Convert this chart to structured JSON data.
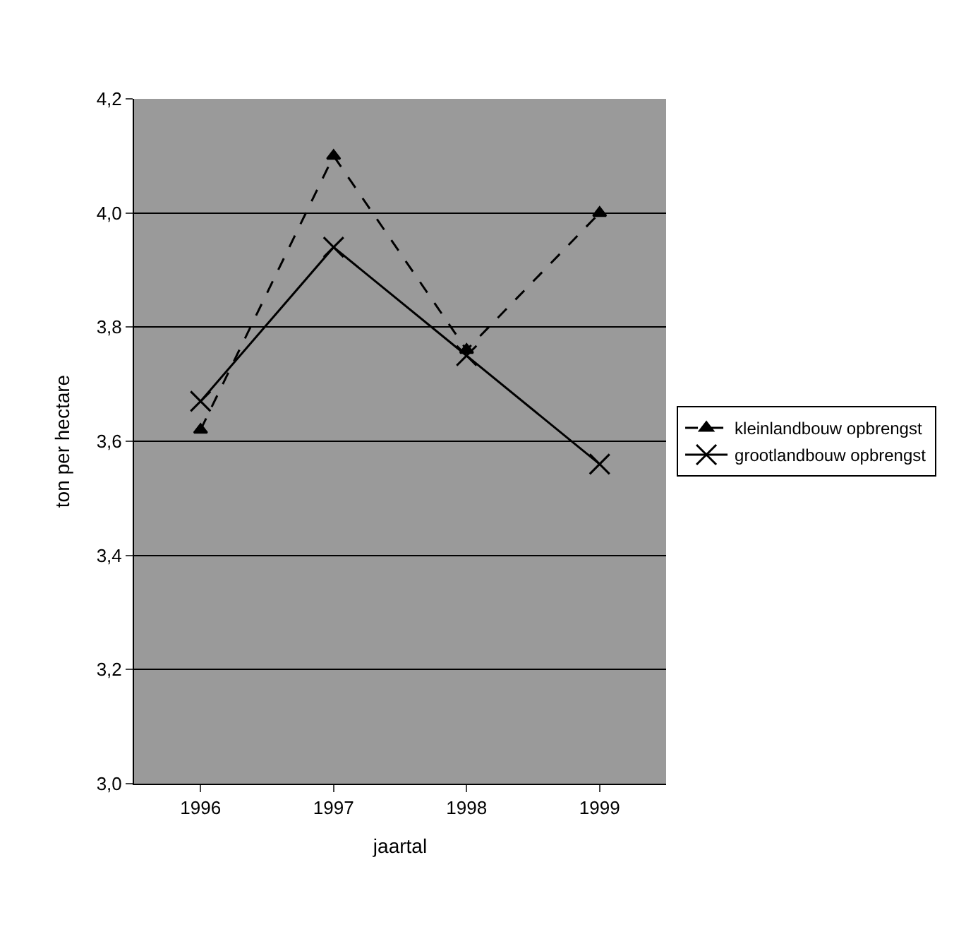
{
  "chart_data": {
    "type": "line",
    "xlabel": "jaartal",
    "ylabel": "ton per hectare",
    "categories": [
      "1996",
      "1997",
      "1998",
      "1999"
    ],
    "series": [
      {
        "name": "kleinlandbouw opbrengst",
        "color": "#000000",
        "values": [
          3.62,
          4.1,
          3.76,
          4.0
        ],
        "marker": "triangle",
        "line_style": "dashed"
      },
      {
        "name": "grootlandbouw opbrengst",
        "color": "#000000",
        "values": [
          3.67,
          3.94,
          3.75,
          3.56
        ],
        "marker": "cross",
        "line_style": "solid"
      }
    ],
    "ylim": [
      3.0,
      4.2
    ],
    "yticks": [
      {
        "value": 3.0,
        "label": "3,0"
      },
      {
        "value": 3.2,
        "label": "3,2"
      },
      {
        "value": 3.4,
        "label": "3,4"
      },
      {
        "value": 3.6,
        "label": "3,6"
      },
      {
        "value": 3.8,
        "label": "3,8"
      },
      {
        "value": 4.0,
        "label": "4,0"
      },
      {
        "value": 4.2,
        "label": "4,2"
      }
    ],
    "grid": "y",
    "legend": "right"
  }
}
